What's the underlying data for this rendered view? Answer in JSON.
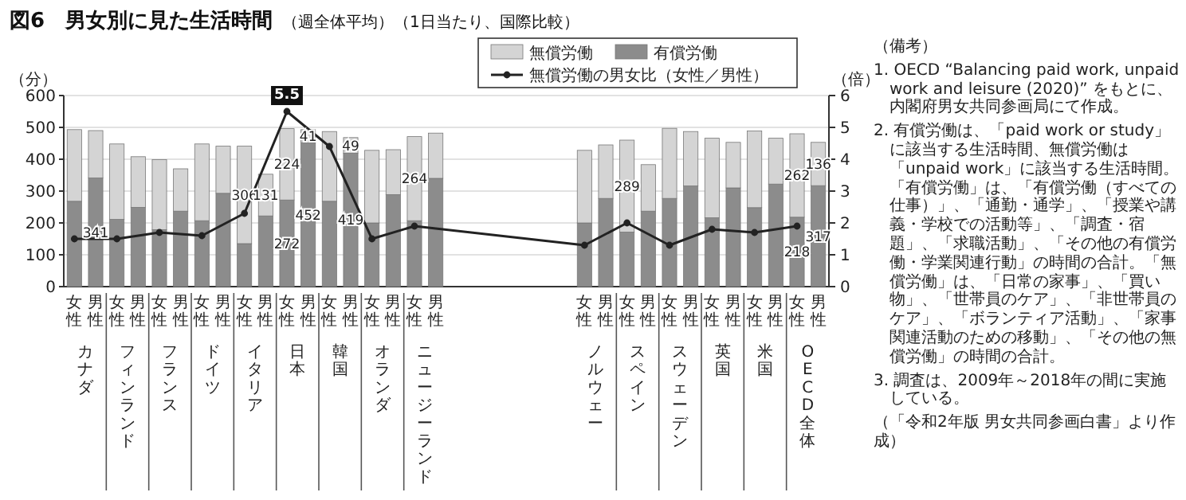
{
  "chart_data": {
    "type": "bar",
    "stacked": true,
    "title": "図6　男女別に見た生活時間",
    "subtitle": "（週全体平均）（1日当たり、国際比較）",
    "ylabel": "（分）",
    "y2label": "（倍）",
    "categories": [
      "女性",
      "男性",
      "女性",
      "男性",
      "女性",
      "男性",
      "女性",
      "男性",
      "女性",
      "男性",
      "女性",
      "男性",
      "女性",
      "男性",
      "女性",
      "男性",
      "女性",
      "男性",
      null,
      null,
      null,
      null,
      null,
      null,
      "女性",
      "男性",
      "女性",
      "男性",
      "女性",
      "男性",
      "女性",
      "男性",
      "女性",
      "男性",
      "女性",
      "男性"
    ],
    "series": [
      {
        "name": "有償労働",
        "color": "#8c8c8c",
        "values": [
          268,
          341,
          211,
          249,
          179,
          237,
          207,
          293,
          135,
          222,
          272,
          452,
          268,
          419,
          200,
          289,
          207,
          340,
          null,
          null,
          null,
          null,
          null,
          null,
          200,
          277,
          171,
          237,
          277,
          316,
          216,
          310,
          248,
          322,
          218,
          317
        ],
        "value_labels": [
          null,
          "341",
          null,
          null,
          null,
          null,
          null,
          null,
          null,
          null,
          "272",
          "452",
          null,
          "419",
          null,
          null,
          null,
          null,
          null,
          null,
          null,
          null,
          null,
          null,
          null,
          null,
          null,
          null,
          null,
          null,
          null,
          null,
          null,
          null,
          "218",
          "317"
        ]
      },
      {
        "name": "無償労働",
        "color": "#d4d4d4",
        "values": [
          225,
          149,
          237,
          159,
          220,
          133,
          241,
          148,
          306,
          131,
          224,
          41,
          219,
          49,
          228,
          141,
          264,
          142,
          null,
          null,
          null,
          null,
          null,
          null,
          228,
          168,
          289,
          146,
          220,
          171,
          250,
          143,
          241,
          144,
          262,
          136
        ],
        "value_labels": [
          null,
          null,
          null,
          null,
          null,
          null,
          null,
          null,
          "306",
          "131",
          "224",
          "41",
          null,
          "49",
          null,
          null,
          "264",
          null,
          null,
          null,
          null,
          null,
          null,
          null,
          null,
          null,
          "289",
          null,
          null,
          null,
          null,
          null,
          null,
          null,
          "262",
          "136"
        ]
      },
      {
        "name": "無償労働の男女比（女性／男性）",
        "type": "line",
        "axis": "y2",
        "color": "#222222",
        "values": [
          1.5,
          null,
          1.5,
          null,
          1.7,
          null,
          1.6,
          null,
          2.3,
          null,
          5.5,
          null,
          4.4,
          null,
          1.5,
          null,
          1.9,
          null,
          null,
          null,
          null,
          null,
          null,
          null,
          1.3,
          null,
          2.0,
          null,
          1.3,
          null,
          1.8,
          null,
          1.7,
          null,
          1.9,
          null
        ],
        "value_labels": [
          null,
          null,
          null,
          null,
          null,
          null,
          null,
          null,
          null,
          null,
          "5.5",
          null,
          null,
          null,
          null,
          null,
          null,
          null,
          null,
          null,
          null,
          null,
          null,
          null,
          null,
          null,
          null,
          null,
          null,
          null,
          null,
          null,
          null,
          null,
          null,
          null
        ]
      }
    ],
    "ylim": [
      0,
      600
    ],
    "yticks": [
      0,
      100,
      200,
      300,
      400,
      500,
      600
    ],
    "y2lim": [
      0,
      6
    ],
    "y2ticks": [
      0,
      1,
      2,
      3,
      4,
      5,
      6
    ],
    "grid": "y",
    "legend": "top",
    "marker": "circle",
    "annotations": [
      "カナダ",
      "フィンランド",
      "フランス",
      "ドイツ",
      "イタリア",
      "日本",
      "韓国",
      "オランダ",
      "ニュージーランド",
      "ノルウェー",
      "スペイン",
      "スウェーデン",
      "英国",
      "米国",
      "OECD全体",
      "（備考）",
      "1. OECD “Balancing paid work, unpaid work and leisure (2020)” をもとに、内閣府男女共同参画局にて作成。",
      "2. 有償労働は、「paid work or study」に該当する生活時間、無償労働は「unpaid work」に該当する生活時間。「有償労働」は、「有償労働（すべての仕事）」、「通勤・通学」、「授業や講義・学校での活動等」、「調査・宿題」、「求職活動」、「その他の有償労働・学業関連行動」の時間の合計。「無償労働」は、「日常の家事」、「買い物」、「世帯員のケア」、「非世帯員のケア」、「ボランティア活動」、「家事関連活動のための移動」、「その他の無償労働」の時間の合計。",
      "3. 調査は、2009年～2018年の間に実施している。",
      "（「令和2年版 男女共同参画白書」より作成）"
    ]
  }
}
